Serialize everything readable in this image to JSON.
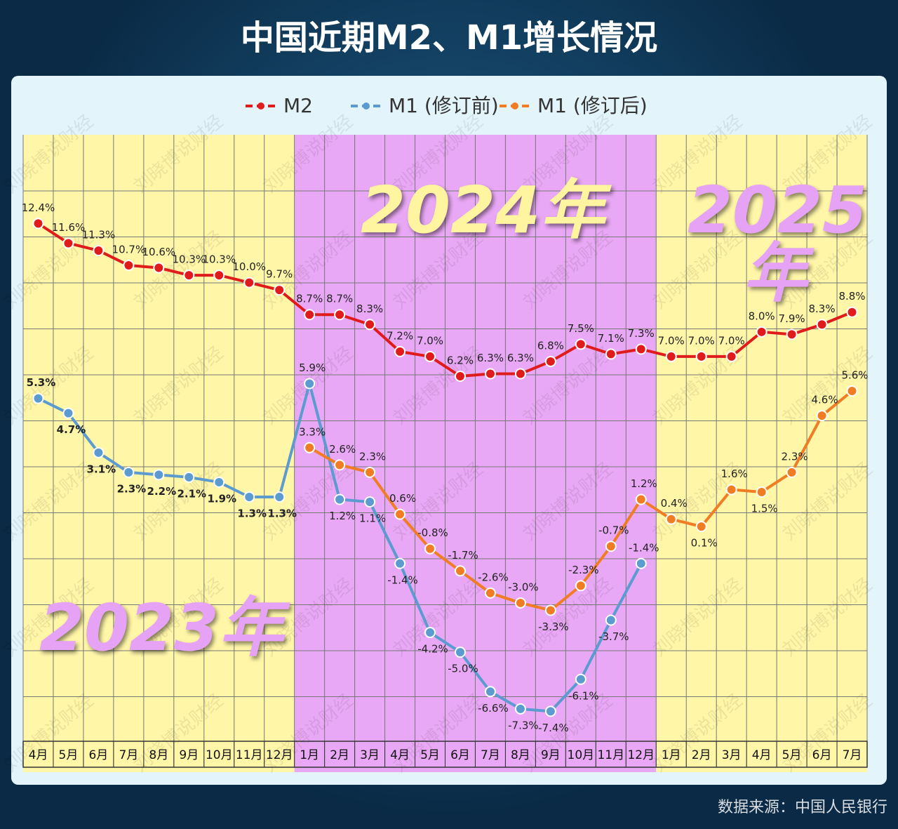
{
  "chart_data": {
    "type": "line",
    "title": "中国近期M2、M1增长情况",
    "categories": [
      "4月",
      "5月",
      "6月",
      "7月",
      "8月",
      "9月",
      "10月",
      "11月",
      "12月",
      "1月",
      "2月",
      "3月",
      "4月",
      "5月",
      "6月",
      "7月",
      "8月",
      "9月",
      "10月",
      "11月",
      "12月",
      "1月",
      "2月",
      "3月",
      "4月",
      "5月",
      "6月",
      "7月"
    ],
    "series": [
      {
        "name": "M2",
        "color": "#e01b1b",
        "values": [
          12.4,
          11.6,
          11.3,
          10.7,
          10.6,
          10.3,
          10.3,
          10.0,
          9.7,
          8.7,
          8.7,
          8.3,
          7.2,
          7.0,
          6.2,
          6.3,
          6.3,
          6.8,
          7.5,
          7.1,
          7.3,
          7.0,
          7.0,
          7.0,
          8.0,
          7.9,
          8.3,
          8.8
        ],
        "value_labels": [
          "12.4%",
          "11.6%",
          "11.3%",
          "10.7%",
          "10.6%",
          "10.3%",
          "10.3%",
          "10.0%",
          "9.7%",
          "8.7%",
          "8.7%",
          "8.3%",
          "7.2%",
          "7.0%",
          "6.2%",
          "6.3%",
          "6.3%",
          "6.8%",
          "7.5%",
          "7.1%",
          "7.3%",
          "7.0%",
          "7.0%",
          "7.0%",
          "8.0%",
          "7.9%",
          "8.3%",
          "8.8%"
        ]
      },
      {
        "name": "M1 (修订前)",
        "color": "#5b9bd0",
        "values": [
          5.3,
          4.7,
          3.1,
          2.3,
          2.2,
          2.1,
          1.9,
          1.3,
          1.3,
          5.9,
          1.2,
          1.1,
          -1.4,
          -4.2,
          -5.0,
          -6.6,
          -7.3,
          -7.4,
          -6.1,
          -3.7,
          -1.4,
          null,
          null,
          null,
          null,
          null,
          null,
          null
        ],
        "value_labels": [
          "5.3%",
          "4.7%",
          "3.1%",
          "2.3%",
          "2.2%",
          "2.1%",
          "1.9%",
          "1.3%",
          "1.3%",
          "5.9%",
          "1.2%",
          "1.1%",
          "-1.4%",
          "-4.2%",
          "-5.0%",
          "-6.6%",
          "-7.3%",
          "-7.4%",
          "-6.1%",
          "-3.7%",
          "-1.4%",
          null,
          null,
          null,
          null,
          null,
          null,
          null
        ]
      },
      {
        "name": "M1 (修订后)",
        "color": "#f07d24",
        "values": [
          null,
          null,
          null,
          null,
          null,
          null,
          null,
          null,
          null,
          3.3,
          2.6,
          2.3,
          0.6,
          -0.8,
          -1.7,
          -2.6,
          -3.0,
          -3.3,
          -2.3,
          -0.7,
          1.2,
          0.4,
          0.1,
          1.6,
          1.5,
          2.3,
          4.6,
          5.6
        ],
        "value_labels": [
          null,
          null,
          null,
          null,
          null,
          null,
          null,
          null,
          null,
          "3.3%",
          "2.6%",
          "2.3%",
          "0.6%",
          "-0.8%",
          "-1.7%",
          "-2.6%",
          "-3.0%",
          "-3.3%",
          "-2.3%",
          "-0.7%",
          "1.2%",
          "0.4%",
          "0.1%",
          "1.6%",
          "1.5%",
          "2.3%",
          "4.6%",
          "5.6%"
        ]
      }
    ],
    "ylim": [
      -8.5,
      16
    ],
    "annotations": [
      "2023年",
      "2024年",
      "2025年"
    ],
    "watermark": "刘晓博说财经",
    "source": "数据来源：中国人民银行"
  }
}
